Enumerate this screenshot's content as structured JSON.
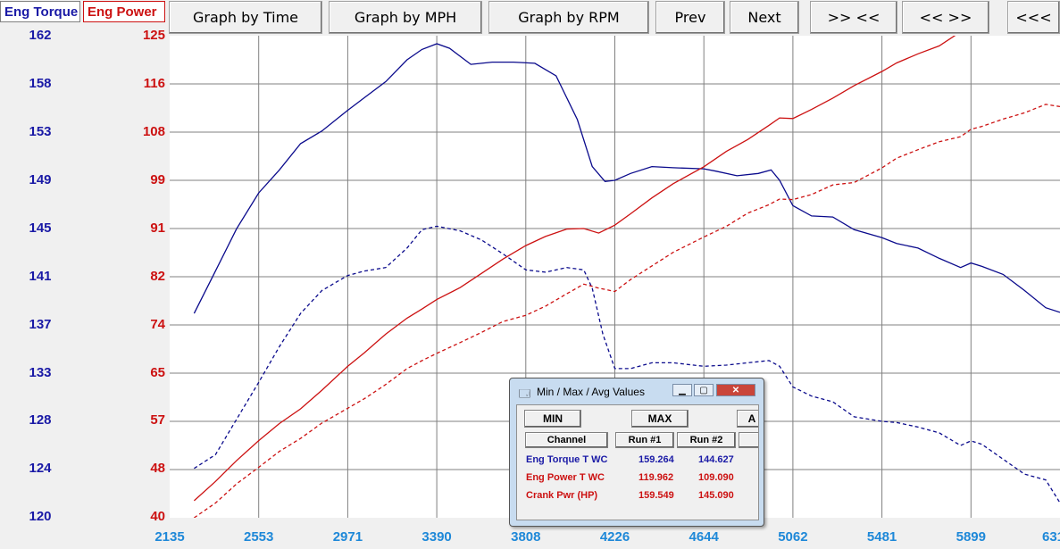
{
  "tabs": {
    "torque": "Eng Torque",
    "power": "Eng Power"
  },
  "toolbar": {
    "graph_time": "Graph by Time",
    "graph_mph": "Graph by MPH",
    "graph_rpm": "Graph by RPM",
    "prev": "Prev",
    "next": "Next",
    "zoom_in": ">> <<",
    "zoom_out": "<< >>",
    "scroll_left": "<<<"
  },
  "colors": {
    "torque": "#0a0a8c",
    "power": "#cc1111",
    "x_axis": "#1e88d8",
    "grid": "#808080"
  },
  "chart_data": {
    "type": "line",
    "x_ticks": [
      "2135",
      "2553",
      "2971",
      "3390",
      "3808",
      "4226",
      "4644",
      "5062",
      "5481",
      "5899",
      "631"
    ],
    "x_range": [
      2135,
      6317
    ],
    "torque_axis": {
      "ticks": [
        "162",
        "158",
        "153",
        "149",
        "145",
        "141",
        "137",
        "133",
        "128",
        "124",
        "120"
      ],
      "range": [
        120,
        162
      ]
    },
    "power_axis": {
      "ticks": [
        "125",
        "116",
        "108",
        "99",
        "91",
        "82",
        "74",
        "65",
        "57",
        "48",
        "40"
      ],
      "range": [
        40,
        125
      ]
    },
    "grid": true,
    "series": [
      {
        "name": "Eng Torque T WC",
        "run": "Run #1",
        "axis": "torque",
        "style": "solid",
        "x": [
          2250,
          2350,
          2450,
          2553,
          2650,
          2750,
          2850,
          2971,
          3050,
          3150,
          3250,
          3320,
          3390,
          3450,
          3550,
          3650,
          3750,
          3850,
          3950,
          4050,
          4120,
          4180,
          4226,
          4300,
          4400,
          4500,
          4644,
          4700,
          4800,
          4900,
          4960,
          5000,
          5062,
          5150,
          5250,
          5350,
          5481,
          5550,
          5650,
          5750,
          5850,
          5899,
          5950,
          6050,
          6150,
          6250,
          6317
        ],
        "y": [
          137.8,
          141.5,
          145.2,
          148.3,
          150.3,
          152.6,
          153.7,
          155.5,
          156.6,
          158.0,
          159.9,
          160.8,
          161.3,
          160.9,
          159.5,
          159.7,
          159.7,
          159.6,
          158.5,
          154.7,
          150.6,
          149.3,
          149.4,
          150.0,
          150.6,
          150.5,
          150.4,
          150.2,
          149.8,
          150.0,
          150.3,
          149.4,
          147.2,
          146.3,
          146.2,
          145.1,
          144.4,
          143.9,
          143.5,
          142.6,
          141.8,
          142.2,
          141.9,
          141.2,
          139.8,
          138.3,
          137.9
        ]
      },
      {
        "name": "Eng Torque T WC",
        "run": "Run #2",
        "axis": "torque",
        "style": "dashed",
        "x": [
          2250,
          2350,
          2450,
          2553,
          2650,
          2750,
          2850,
          2971,
          3050,
          3150,
          3250,
          3320,
          3390,
          3500,
          3600,
          3700,
          3808,
          3900,
          4000,
          4080,
          4120,
          4170,
          4226,
          4300,
          4400,
          4500,
          4644,
          4750,
          4850,
          4950,
          5000,
          5062,
          5150,
          5250,
          5350,
          5481,
          5550,
          5650,
          5750,
          5850,
          5899,
          5950,
          6050,
          6150,
          6250,
          6317
        ],
        "y": [
          124.3,
          125.5,
          128.6,
          131.8,
          134.9,
          137.8,
          139.8,
          141.1,
          141.5,
          141.8,
          143.5,
          145.1,
          145.4,
          145.0,
          144.2,
          143.0,
          141.6,
          141.4,
          141.8,
          141.6,
          140.0,
          136.0,
          133.0,
          133.0,
          133.5,
          133.5,
          133.2,
          133.3,
          133.5,
          133.7,
          133.2,
          131.4,
          130.6,
          130.1,
          128.8,
          128.4,
          128.3,
          127.9,
          127.4,
          126.3,
          126.7,
          126.4,
          125.1,
          123.8,
          123.3,
          121.3
        ]
      },
      {
        "name": "Eng Power T WC",
        "run": "Run #1",
        "axis": "power",
        "style": "solid",
        "x": [
          2250,
          2350,
          2450,
          2553,
          2650,
          2750,
          2850,
          2971,
          3050,
          3150,
          3250,
          3320,
          3390,
          3500,
          3600,
          3700,
          3808,
          3900,
          4000,
          4080,
          4150,
          4226,
          4300,
          4400,
          4500,
          4644,
          4750,
          4850,
          4950,
          5000,
          5062,
          5150,
          5250,
          5350,
          5481,
          5550,
          5650,
          5750,
          5850,
          5899,
          5950,
          6050,
          6150,
          6250,
          6317
        ],
        "y": [
          43.0,
          46.4,
          50.1,
          53.6,
          56.6,
          59.2,
          62.5,
          66.7,
          69.1,
          72.4,
          75.2,
          76.8,
          78.5,
          80.6,
          83.1,
          85.6,
          88.0,
          89.6,
          90.9,
          91.0,
          90.2,
          91.6,
          93.6,
          96.4,
          98.9,
          101.9,
          104.6,
          106.7,
          109.2,
          110.5,
          110.4,
          112.0,
          114.0,
          116.2,
          118.7,
          120.2,
          121.8,
          123.2,
          125.7,
          126.6,
          127.2,
          128.0,
          128.1,
          128.2,
          128.8
        ]
      },
      {
        "name": "Eng Power T WC",
        "run": "Run #2",
        "axis": "power",
        "style": "dashed",
        "x": [
          2250,
          2350,
          2450,
          2553,
          2650,
          2750,
          2850,
          2971,
          3050,
          3150,
          3250,
          3320,
          3390,
          3500,
          3600,
          3700,
          3808,
          3900,
          4000,
          4080,
          4150,
          4226,
          4300,
          4400,
          4500,
          4644,
          4750,
          4850,
          4950,
          5000,
          5062,
          5150,
          5250,
          5350,
          5481,
          5550,
          5650,
          5750,
          5850,
          5899,
          5950,
          6050,
          6150,
          6250,
          6317
        ],
        "y": [
          40.0,
          42.6,
          46.0,
          48.9,
          51.7,
          54.0,
          56.7,
          59.3,
          61.0,
          63.5,
          66.3,
          67.7,
          69.0,
          70.9,
          72.7,
          74.6,
          75.7,
          77.3,
          79.5,
          81.2,
          80.5,
          79.9,
          82.0,
          84.4,
          86.8,
          89.5,
          91.4,
          93.7,
          95.2,
          96.2,
          96.1,
          97.0,
          98.7,
          99.1,
          101.7,
          103.4,
          104.9,
          106.3,
          107.2,
          108.5,
          109.0,
          110.3,
          111.4,
          112.9,
          112.5
        ]
      }
    ]
  },
  "dialog": {
    "title": "Min / Max / Avg Values",
    "buttons": {
      "min": "MIN",
      "max": "MAX",
      "avg": "A"
    },
    "headers": {
      "channel": "Channel",
      "run1": "Run #1",
      "run2": "Run #2"
    },
    "rows": [
      {
        "channel": "Eng Torque T WC",
        "run1": "159.264",
        "run2": "144.627",
        "color": "#1a1aa6"
      },
      {
        "channel": "Eng Power T WC",
        "run1": "119.962",
        "run2": "109.090",
        "color": "#cc1111"
      },
      {
        "channel": "Crank Pwr (HP)",
        "run1": "159.549",
        "run2": "145.090",
        "color": "#cc1111"
      }
    ]
  }
}
